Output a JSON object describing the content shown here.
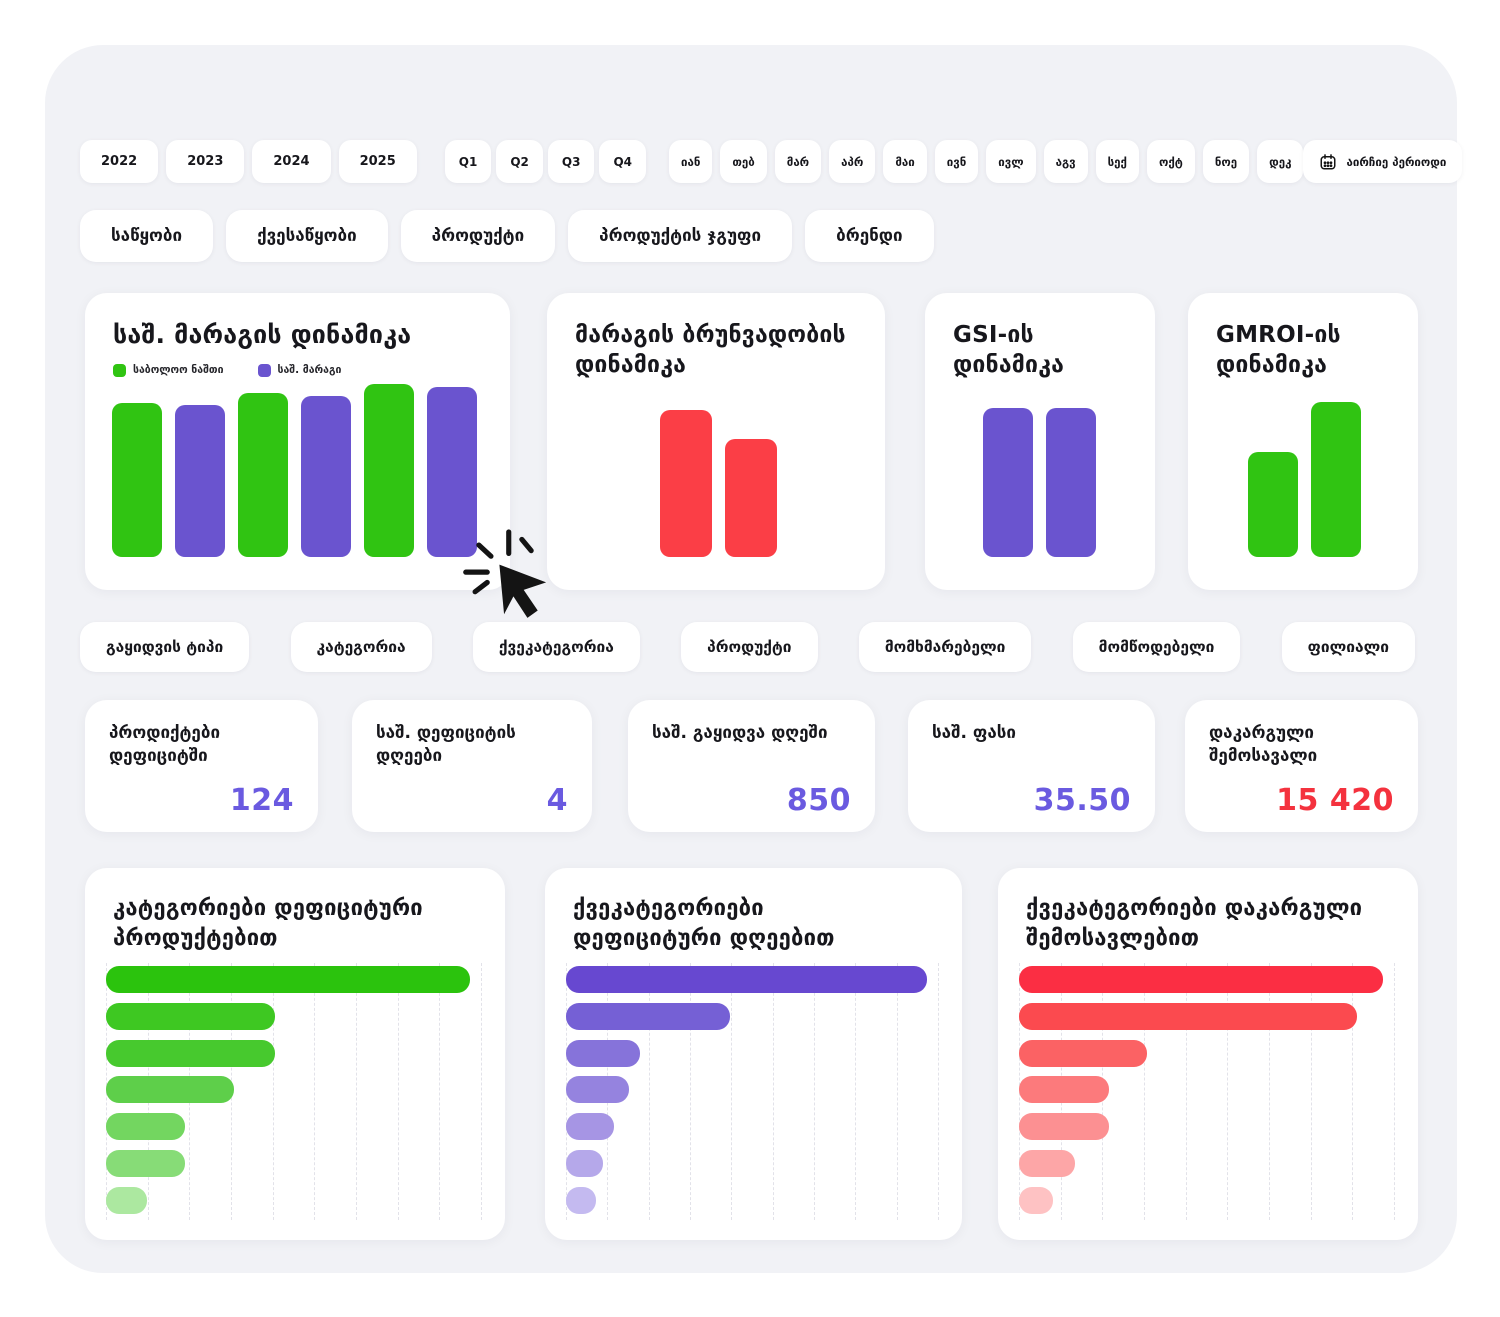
{
  "top_filters": {
    "years": [
      "2022",
      "2023",
      "2024",
      "2025"
    ],
    "quarters": [
      "Q1",
      "Q2",
      "Q3",
      "Q4"
    ],
    "months": [
      "იან",
      "თებ",
      "მარ",
      "აპრ",
      "მაი",
      "ივნ",
      "ივლ",
      "აგვ",
      "სექ",
      "ოქტ",
      "ნოე",
      "დეკ"
    ],
    "period_picker_label": "აირჩიე პერიოდი"
  },
  "dimension_filters_row1": [
    "საწყობი",
    "ქვესაწყობი",
    "პროდუქტი",
    "პროდუქტის ჯგუფი",
    "ბრენდი"
  ],
  "dimension_filters_row2": [
    "გაყიდვის ტიპი",
    "კატეგორია",
    "ქვეკატეგორია",
    "პროდუქტი",
    "მომხმარებელი",
    "მომწოდებელი",
    "ფილიალი"
  ],
  "colors": {
    "green": "#30c412",
    "purple": "#6a54cf",
    "red": "#fb3e46",
    "kpi_purple": "#6a5ae0",
    "kpi_red": "#f4323e",
    "card_bg": "#ffffff",
    "page_bg": "#f1f2f6"
  },
  "kpis": [
    {
      "label": "პროდიქტები დეფიციტში",
      "value": "124",
      "color": "#6a5ae0"
    },
    {
      "label": "საშ. დეფიციტის დღეები",
      "value": "4",
      "color": "#6a5ae0"
    },
    {
      "label": "საშ. გაყიდვა დღეში",
      "value": "850",
      "color": "#6a5ae0"
    },
    {
      "label": "საშ. ფასი",
      "value": "35.50",
      "color": "#6a5ae0"
    },
    {
      "label": "დაკარგული შემოსავალი",
      "value": "15 420",
      "color": "#f4323e"
    }
  ],
  "chart_data": [
    {
      "type": "bar",
      "title": "საშ. მარაგის დინამიკა",
      "legend": [
        {
          "label": "საბოლოო ნაშთი",
          "color": "#30c412"
        },
        {
          "label": "საშ. მარაგი",
          "color": "#6a54cf"
        }
      ],
      "note": "3 paired periods, no axis labels visible; values are relative (tallest = 100)",
      "bars": [
        {
          "value": 89,
          "series": "საბოლოო ნაშთი",
          "color": "#30c412"
        },
        {
          "value": 88,
          "series": "საშ. მარაგი",
          "color": "#6a54cf"
        },
        {
          "value": 95,
          "series": "საბოლოო ნაშთი",
          "color": "#30c412"
        },
        {
          "value": 93,
          "series": "საშ. მარაგი",
          "color": "#6a54cf"
        },
        {
          "value": 100,
          "series": "საბოლოო ნაშთი",
          "color": "#30c412"
        },
        {
          "value": 98,
          "series": "საშ. მარაგი",
          "color": "#6a54cf"
        }
      ]
    },
    {
      "type": "bar",
      "title": "მარაგის ბრუნვადობის დინამიკა",
      "note": "relative values, no axis labels visible",
      "bars": [
        {
          "value": 100,
          "color": "#fb3e46"
        },
        {
          "value": 80,
          "color": "#fb3e46"
        }
      ]
    },
    {
      "type": "bar",
      "title": "GSI-ის დინამიკა",
      "note": "relative values, no axis labels visible",
      "bars": [
        {
          "value": 100,
          "color": "#6a54cf"
        },
        {
          "value": 100,
          "color": "#6a54cf"
        }
      ]
    },
    {
      "type": "bar",
      "title": "GMROI-ის დინამიკა",
      "note": "relative values, no axis labels visible",
      "bars": [
        {
          "value": 68,
          "color": "#30c412"
        },
        {
          "value": 100,
          "color": "#30c412"
        }
      ]
    },
    {
      "type": "bar-horizontal",
      "title": "კატეგორიები დეფიციტური პროდუქტებით",
      "note": "7 unlabeled rows, values as % of axis width, dashed gridlines",
      "values": [
        97,
        45,
        45,
        34,
        21,
        21,
        11
      ],
      "colors": [
        "#2bc30d",
        "#3ec822",
        "#47c92e",
        "#5ecf4a",
        "#73d660",
        "#87dc77",
        "#ace8a0"
      ],
      "gridlines": 10
    },
    {
      "type": "bar-horizontal",
      "title": "ქვეკატეგორიები დეფიციტური დღეებით",
      "note": "7 unlabeled rows, values as % of axis width, dashed gridlines",
      "values": [
        97,
        44,
        20,
        17,
        13,
        10,
        8
      ],
      "colors": [
        "#6748d0",
        "#7560d5",
        "#8673da",
        "#9583df",
        "#a695e4",
        "#b5a8ea",
        "#c4baf0"
      ],
      "gridlines": 10
    },
    {
      "type": "bar-horizontal",
      "title": "ქვეკატეგორიები დაკარგული შემოსავლებით",
      "note": "7 unlabeled rows, values as % of axis width, dashed gridlines",
      "values": [
        97,
        90,
        34,
        24,
        24,
        15,
        9
      ],
      "colors": [
        "#fb2e43",
        "#fb4a4f",
        "#fb6264",
        "#fc7a7c",
        "#fc9092",
        "#fda6a7",
        "#fec2c3"
      ],
      "gridlines": 10
    }
  ]
}
